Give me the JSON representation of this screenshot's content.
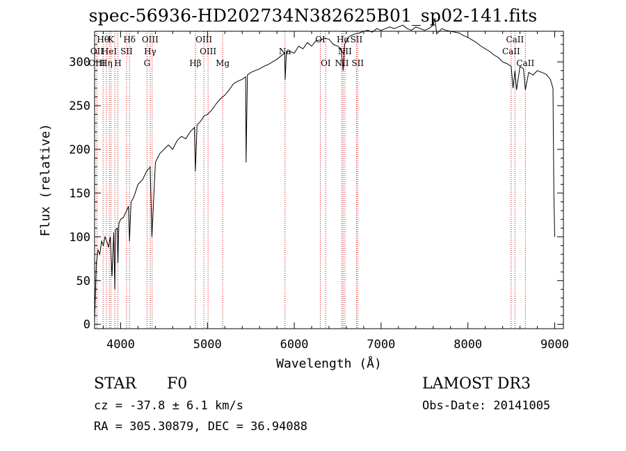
{
  "chart_data": {
    "type": "line",
    "title": "spec-56936-HD202734N382625B01_sp02-141.fits",
    "xlabel": "Wavelength (Å)",
    "ylabel": "Flux (relative)",
    "xlim": [
      3700,
      9100
    ],
    "ylim": [
      -5,
      335
    ],
    "x_ticks": [
      4000,
      5000,
      6000,
      7000,
      8000,
      9000
    ],
    "y_ticks": [
      0,
      50,
      100,
      150,
      200,
      250,
      300
    ],
    "grid": false,
    "series": [
      {
        "name": "flux",
        "x": [
          3700,
          3720,
          3740,
          3760,
          3780,
          3800,
          3820,
          3840,
          3860,
          3880,
          3900,
          3920,
          3933,
          3940,
          3960,
          3968,
          3980,
          4000,
          4030,
          4060,
          4090,
          4102,
          4120,
          4150,
          4200,
          4250,
          4300,
          4340,
          4360,
          4400,
          4450,
          4500,
          4550,
          4600,
          4650,
          4700,
          4750,
          4800,
          4850,
          4861,
          4880,
          4920,
          4960,
          5000,
          5050,
          5100,
          5150,
          5200,
          5250,
          5300,
          5350,
          5400,
          5440,
          5445,
          5460,
          5500,
          5550,
          5600,
          5650,
          5700,
          5750,
          5800,
          5850,
          5890,
          5895,
          5910,
          5950,
          6000,
          6050,
          6100,
          6150,
          6200,
          6250,
          6300,
          6350,
          6400,
          6450,
          6500,
          6540,
          6563,
          6580,
          6620,
          6650,
          6700,
          6750,
          6800,
          6850,
          6900,
          6950,
          7000,
          7050,
          7100,
          7150,
          7200,
          7250,
          7300,
          7350,
          7400,
          7450,
          7500,
          7550,
          7600,
          7620,
          7640,
          7700,
          7750,
          7800,
          7850,
          7900,
          7950,
          8000,
          8050,
          8100,
          8150,
          8200,
          8250,
          8300,
          8350,
          8400,
          8450,
          8498,
          8520,
          8542,
          8560,
          8600,
          8640,
          8662,
          8700,
          8750,
          8800,
          8850,
          8900,
          8950,
          8980,
          8990,
          9000
        ],
        "y": [
          5,
          70,
          85,
          80,
          95,
          90,
          100,
          95,
          88,
          100,
          55,
          105,
          40,
          108,
          110,
          70,
          115,
          120,
          122,
          128,
          135,
          95,
          140,
          145,
          160,
          165,
          175,
          180,
          100,
          185,
          195,
          200,
          205,
          200,
          210,
          215,
          212,
          220,
          225,
          175,
          228,
          232,
          238,
          240,
          245,
          252,
          258,
          262,
          268,
          275,
          278,
          280,
          283,
          185,
          285,
          288,
          290,
          292,
          295,
          297,
          300,
          303,
          307,
          310,
          280,
          312,
          312,
          310,
          318,
          315,
          322,
          318,
          324,
          325,
          327,
          326,
          320,
          318,
          315,
          290,
          320,
          328,
          330,
          332,
          333,
          335,
          336,
          334,
          338,
          336,
          338,
          340,
          338,
          340,
          342,
          338,
          336,
          340,
          338,
          336,
          338,
          342,
          350,
          332,
          338,
          336,
          335,
          334,
          333,
          330,
          328,
          325,
          322,
          318,
          315,
          312,
          308,
          305,
          300,
          298,
          295,
          270,
          290,
          268,
          295,
          292,
          268,
          288,
          285,
          290,
          288,
          286,
          280,
          270,
          150,
          100
        ]
      }
    ],
    "line_labels": [
      {
        "wl": 3798,
        "text": "Hθ",
        "row": 0
      },
      {
        "wl": 3727,
        "text": "OII",
        "row": 1
      },
      {
        "wl": 3727,
        "text": "OIII",
        "row": 2
      },
      {
        "wl": 3869,
        "text": "HeI",
        "row": 1
      },
      {
        "wl": 3835,
        "text": "Hη",
        "row": 2
      },
      {
        "wl": 3889,
        "text": "K",
        "row": 0
      },
      {
        "wl": 3968,
        "text": "H",
        "row": 2
      },
      {
        "wl": 4068,
        "text": "SII",
        "row": 1
      },
      {
        "wl": 4102,
        "text": "Hδ",
        "row": 0
      },
      {
        "wl": 4340,
        "text": "OIII",
        "row": 0
      },
      {
        "wl": 4340,
        "text": "Hγ",
        "row": 1
      },
      {
        "wl": 4304,
        "text": "G",
        "row": 2
      },
      {
        "wl": 4861,
        "text": "Hβ",
        "row": 2
      },
      {
        "wl": 4959,
        "text": "OIII",
        "row": 0
      },
      {
        "wl": 5007,
        "text": "OIII",
        "row": 1
      },
      {
        "wl": 5175,
        "text": "Mg",
        "row": 2
      },
      {
        "wl": 5893,
        "text": "Na",
        "row": 1
      },
      {
        "wl": 6300,
        "text": "OI",
        "row": 0
      },
      {
        "wl": 6363,
        "text": "OI",
        "row": 2
      },
      {
        "wl": 6563,
        "text": "Hα",
        "row": 0
      },
      {
        "wl": 6583,
        "text": "NII",
        "row": 1
      },
      {
        "wl": 6548,
        "text": "NII",
        "row": 2
      },
      {
        "wl": 6716,
        "text": "SII",
        "row": 0
      },
      {
        "wl": 6731,
        "text": "SII",
        "row": 2
      },
      {
        "wl": 8498,
        "text": "CaII",
        "row": 1
      },
      {
        "wl": 8542,
        "text": "CaII",
        "row": 0
      },
      {
        "wl": 8662,
        "text": "CaII",
        "row": 2
      }
    ],
    "marker_lines": [
      3727,
      3798,
      3835,
      3869,
      3889,
      3934,
      3968,
      4068,
      4102,
      4304,
      4340,
      4363,
      4861,
      4959,
      5007,
      5175,
      5893,
      6300,
      6363,
      6548,
      6563,
      6583,
      6716,
      6731,
      8498,
      8542,
      8662
    ]
  },
  "info": {
    "object_class": "STAR",
    "subclass": "F0",
    "survey": "LAMOST DR3",
    "cz": "cz = -37.8 ± 6.1 km/s",
    "obs_date": "Obs-Date: 20141005",
    "coords": "RA = 305.30879, DEC =  36.94088"
  },
  "colors": {
    "line": "#000000",
    "marker": "#cc0000",
    "axis": "#000000"
  }
}
